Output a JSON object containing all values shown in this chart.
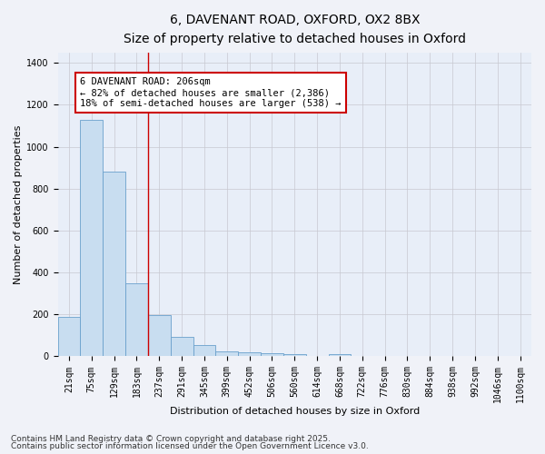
{
  "title_line1": "6, DAVENANT ROAD, OXFORD, OX2 8BX",
  "title_line2": "Size of property relative to detached houses in Oxford",
  "xlabel": "Distribution of detached houses by size in Oxford",
  "ylabel": "Number of detached properties",
  "categories": [
    "21sqm",
    "75sqm",
    "129sqm",
    "183sqm",
    "237sqm",
    "291sqm",
    "345sqm",
    "399sqm",
    "452sqm",
    "506sqm",
    "560sqm",
    "614sqm",
    "668sqm",
    "722sqm",
    "776sqm",
    "830sqm",
    "884sqm",
    "938sqm",
    "992sqm",
    "1046sqm",
    "1100sqm"
  ],
  "values": [
    190,
    1130,
    880,
    350,
    195,
    95,
    55,
    25,
    20,
    15,
    12,
    0,
    10,
    0,
    0,
    0,
    0,
    0,
    0,
    0,
    0
  ],
  "bar_color": "#c8ddf0",
  "bar_edge_color": "#6aa0cc",
  "red_line_x": 3.5,
  "annotation_line1": "6 DAVENANT ROAD: 206sqm",
  "annotation_line2": "← 82% of detached houses are smaller (2,386)",
  "annotation_line3": "18% of semi-detached houses are larger (538) →",
  "annotation_box_facecolor": "#ffffff",
  "annotation_box_edgecolor": "#cc0000",
  "red_line_color": "#cc0000",
  "grid_color": "#c8c8d0",
  "background_color": "#e8eef8",
  "fig_facecolor": "#f0f2f8",
  "ylim": [
    0,
    1450
  ],
  "yticks": [
    0,
    200,
    400,
    600,
    800,
    1000,
    1200,
    1400
  ],
  "footer_line1": "Contains HM Land Registry data © Crown copyright and database right 2025.",
  "footer_line2": "Contains public sector information licensed under the Open Government Licence v3.0.",
  "title_fontsize": 10,
  "subtitle_fontsize": 9,
  "axis_label_fontsize": 8,
  "tick_fontsize": 7,
  "annotation_fontsize": 7.5,
  "footer_fontsize": 6.5
}
